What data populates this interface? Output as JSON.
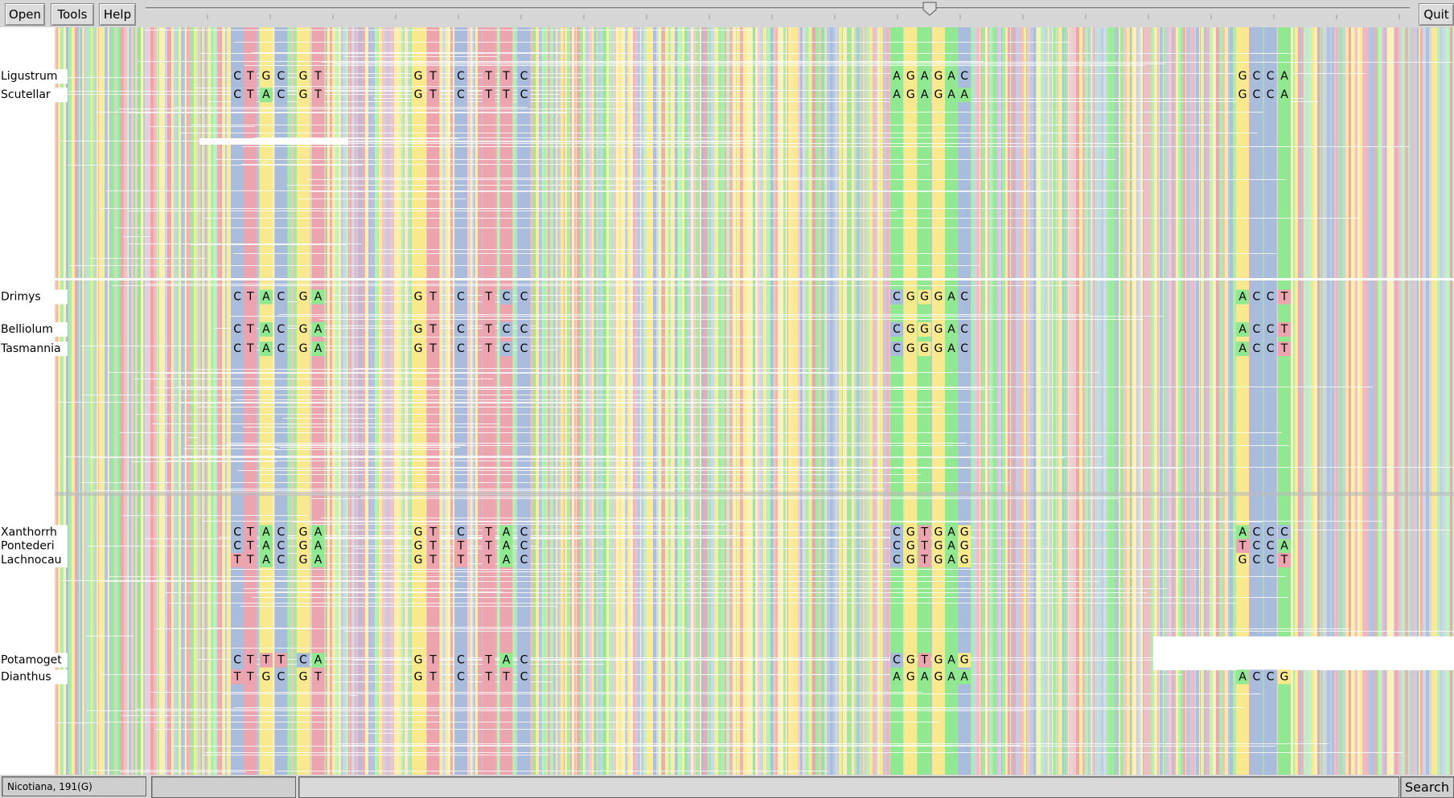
{
  "toolbar": {
    "buttons": [
      "Open",
      "Tools",
      "Help"
    ],
    "quit": "Quit"
  },
  "alignment": {
    "rows": [
      {
        "name": "Ligustrum",
        "groups": [
          [
            "C",
            "T",
            "G",
            "C",
            "G",
            "T"
          ],
          [
            "G",
            "T",
            "C",
            "T",
            "T",
            "C"
          ],
          [
            "A",
            "G",
            "A",
            "G",
            "A",
            "C"
          ],
          [
            "G",
            "C",
            "C",
            "A"
          ]
        ]
      },
      {
        "name": "Scutellar",
        "groups": [
          [
            "C",
            "T",
            "A",
            "C",
            "G",
            "T"
          ],
          [
            "G",
            "T",
            "C",
            "T",
            "T",
            "C"
          ],
          [
            "A",
            "G",
            "A",
            "G",
            "A",
            "A"
          ],
          [
            "G",
            "C",
            "C",
            "A"
          ]
        ]
      },
      {
        "name": "Drimys",
        "groups": [
          [
            "C",
            "T",
            "A",
            "C",
            "G",
            "A"
          ],
          [
            "G",
            "T",
            "C",
            "T",
            "C",
            "C"
          ],
          [
            "C",
            "G",
            "G",
            "G",
            "A",
            "C"
          ],
          [
            "A",
            "C",
            "C",
            "T"
          ]
        ]
      },
      {
        "name": "Belliolum",
        "groups": [
          [
            "C",
            "T",
            "A",
            "C",
            "G",
            "A"
          ],
          [
            "G",
            "T",
            "C",
            "T",
            "C",
            "C"
          ],
          [
            "C",
            "G",
            "G",
            "G",
            "A",
            "C"
          ],
          [
            "A",
            "C",
            "C",
            "T"
          ]
        ]
      },
      {
        "name": "Tasmannia",
        "groups": [
          [
            "C",
            "T",
            "A",
            "C",
            "G",
            "A"
          ],
          [
            "G",
            "T",
            "C",
            "T",
            "C",
            "C"
          ],
          [
            "C",
            "G",
            "G",
            "G",
            "A",
            "C"
          ],
          [
            "A",
            "C",
            "C",
            "T"
          ]
        ]
      },
      {
        "name": "Xanthorrh",
        "groups": [
          [
            "C",
            "T",
            "A",
            "C",
            "G",
            "A"
          ],
          [
            "G",
            "T",
            "C",
            "T",
            "A",
            "C"
          ],
          [
            "C",
            "G",
            "T",
            "G",
            "A",
            "G"
          ],
          [
            "A",
            "C",
            "C",
            "C"
          ]
        ]
      },
      {
        "name": "Pontederi",
        "groups": [
          [
            "C",
            "T",
            "A",
            "C",
            "G",
            "A"
          ],
          [
            "G",
            "T",
            "T",
            "T",
            "A",
            "C"
          ],
          [
            "C",
            "G",
            "T",
            "G",
            "A",
            "G"
          ],
          [
            "T",
            "C",
            "C",
            "A"
          ]
        ]
      },
      {
        "name": "Lachnocau",
        "groups": [
          [
            "T",
            "T",
            "A",
            "C",
            "G",
            "A"
          ],
          [
            "G",
            "T",
            "T",
            "T",
            "A",
            "C"
          ],
          [
            "C",
            "G",
            "T",
            "G",
            "A",
            "G"
          ],
          [
            "G",
            "C",
            "C",
            "T"
          ]
        ]
      },
      {
        "name": "Potamoget",
        "groups": [
          [
            "C",
            "T",
            "T",
            "T",
            "C",
            "A"
          ],
          [
            "G",
            "T",
            "C",
            "T",
            "A",
            "C"
          ],
          [
            "C",
            "G",
            "T",
            "G",
            "A",
            "G"
          ]
        ]
      },
      {
        "name": "Dianthus",
        "groups": [
          [
            "T",
            "T",
            "G",
            "C",
            "G",
            "T"
          ],
          [
            "G",
            "T",
            "C",
            "T",
            "T",
            "C"
          ],
          [
            "A",
            "G",
            "A",
            "G",
            "A",
            "A"
          ],
          [
            "A",
            "C",
            "C",
            "G"
          ]
        ]
      }
    ]
  },
  "statusbar": {
    "status": "Nicotiana, 191(G)",
    "search": "Search"
  }
}
